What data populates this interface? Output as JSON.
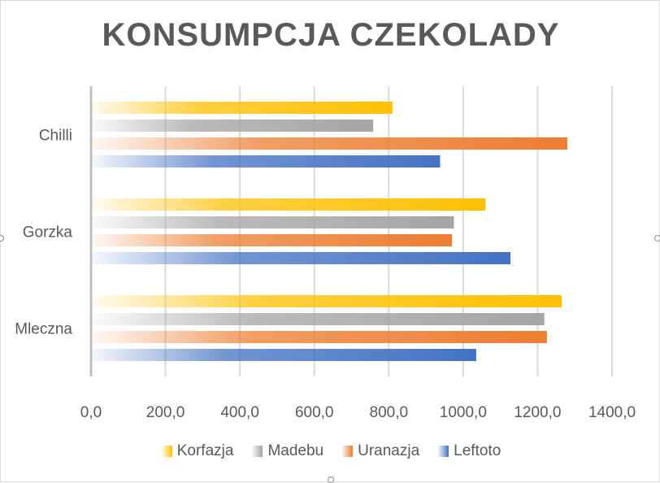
{
  "chart_data": {
    "type": "bar",
    "orientation": "horizontal",
    "title": "KONSUMPCJA CZEKOLADY",
    "categories": [
      "Chilli",
      "Gorzka",
      "Mleczna"
    ],
    "series": [
      {
        "name": "Korfazja",
        "values": [
          810,
          1060,
          1265
        ],
        "color": "#FFC000"
      },
      {
        "name": "Madebu",
        "values": [
          758,
          975,
          1218
        ],
        "color": "#A5A5A5"
      },
      {
        "name": "Uranazja",
        "values": [
          1280,
          970,
          1225
        ],
        "color": "#ED7D31"
      },
      {
        "name": "Leftoto",
        "values": [
          938,
          1127,
          1035
        ],
        "color": "#4472C4"
      }
    ],
    "xlim": [
      0,
      1400
    ],
    "x_ticks": [
      "0,0",
      "200,0",
      "400,0",
      "600,0",
      "800,0",
      "1000,0",
      "1200,0",
      "1400,0"
    ],
    "x_tick_values": [
      0,
      200,
      400,
      600,
      800,
      1000,
      1200,
      1400
    ],
    "grid": true,
    "legend_position": "bottom",
    "bar_style": "gradient"
  }
}
